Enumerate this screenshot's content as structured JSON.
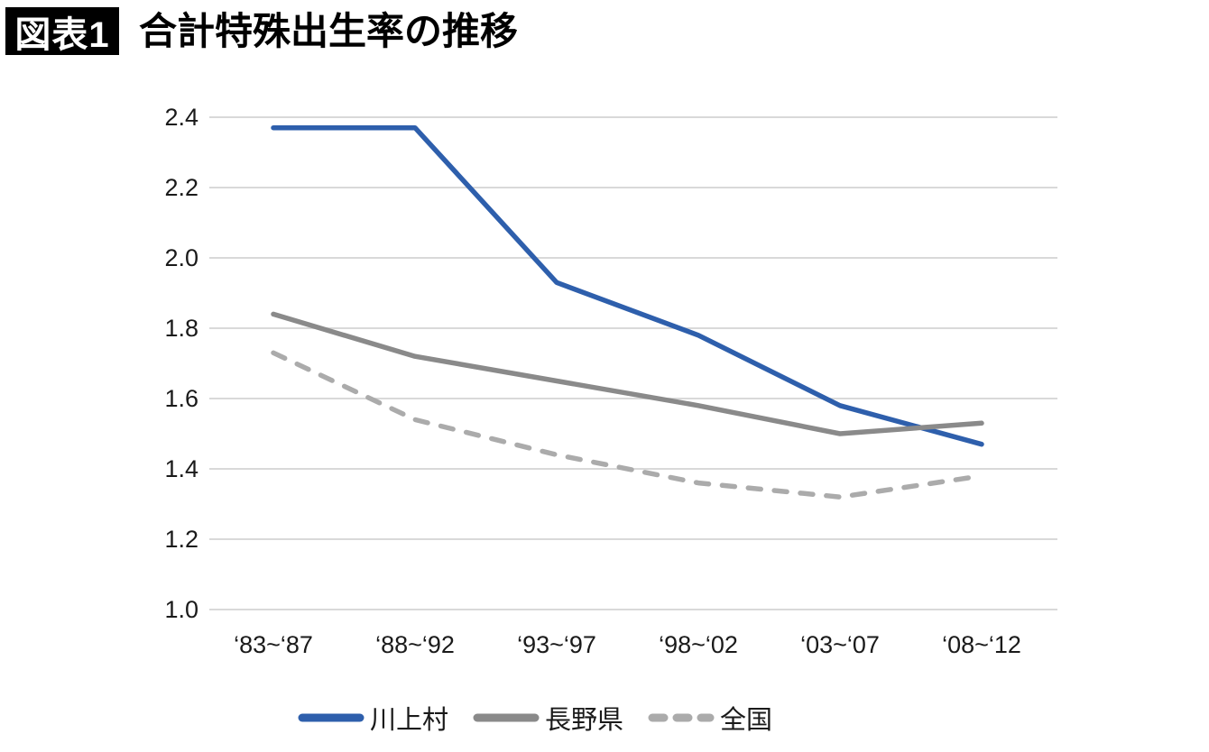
{
  "header": {
    "badge": "図表1",
    "title": "合計特殊出生率の推移"
  },
  "chart_data": {
    "type": "line",
    "title": "合計特殊出生率の推移",
    "categories": [
      "‘83~‘87",
      "‘88~‘92",
      "‘93~‘97",
      "‘98~‘02",
      "‘03~‘07",
      "‘08~‘12"
    ],
    "series": [
      {
        "name": "川上村",
        "values": [
          2.37,
          2.37,
          1.93,
          1.78,
          1.58,
          1.47
        ],
        "color": "#2e5fac",
        "style": "solid"
      },
      {
        "name": "長野県",
        "values": [
          1.84,
          1.72,
          1.65,
          1.58,
          1.5,
          1.53
        ],
        "color": "#8a8a8a",
        "style": "solid"
      },
      {
        "name": "全国",
        "values": [
          1.73,
          1.54,
          1.44,
          1.36,
          1.32,
          1.38
        ],
        "color": "#ababab",
        "style": "dashed"
      }
    ],
    "xlabel": "",
    "ylabel": "",
    "y_ticks": [
      "2.4",
      "2.2",
      "2.0",
      "1.8",
      "1.6",
      "1.4",
      "1.2",
      "1.0"
    ],
    "ylim": [
      1.0,
      2.4
    ],
    "grid": true,
    "gridline_color": "#d9d9d9",
    "tick_color": "#1a1a1a",
    "legend_position": "bottom"
  }
}
